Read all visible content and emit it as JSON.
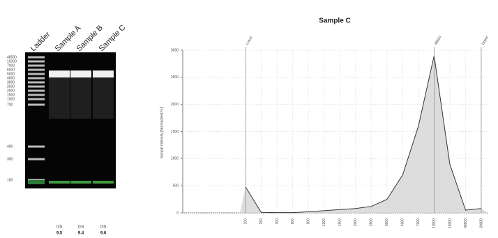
{
  "gel": {
    "lanes": [
      "Ladder",
      "Sample A",
      "Sample B",
      "Sample C"
    ],
    "ladder_labels": [
      "48500",
      "15000",
      "7000",
      "6000",
      "5000",
      "4000",
      "3000",
      "2500",
      "2000",
      "1500",
      "1000",
      "700",
      "400",
      "300",
      "100"
    ],
    "din_label": "DIN",
    "din_values": [
      "9.5",
      "9.4",
      "9.6"
    ]
  },
  "chart_data": {
    "type": "line",
    "title": "Sample C",
    "y_label": "Sample Intensity [Normalized FU]",
    "categories": [
      "100",
      "250",
      "400",
      "600",
      "900",
      "1200",
      "1500",
      "2000",
      "2500",
      "3000",
      "4000",
      "7000",
      "10000",
      "15000",
      "48500",
      "60000"
    ],
    "values": [
      480,
      10,
      5,
      5,
      20,
      40,
      60,
      80,
      120,
      250,
      700,
      1600,
      2900,
      900,
      50,
      80
    ],
    "color": "#333333",
    "fill": "#d4d4d4",
    "ylim": [
      0,
      3000
    ],
    "yticks": [
      0,
      500,
      1000,
      1500,
      2000,
      2500,
      3000
    ],
    "grid": true,
    "annotations": [
      {
        "text": "Lower",
        "x": "100"
      },
      {
        "text": "48500",
        "x": "10000"
      },
      {
        "text": "Upper",
        "x": "60000"
      }
    ]
  }
}
